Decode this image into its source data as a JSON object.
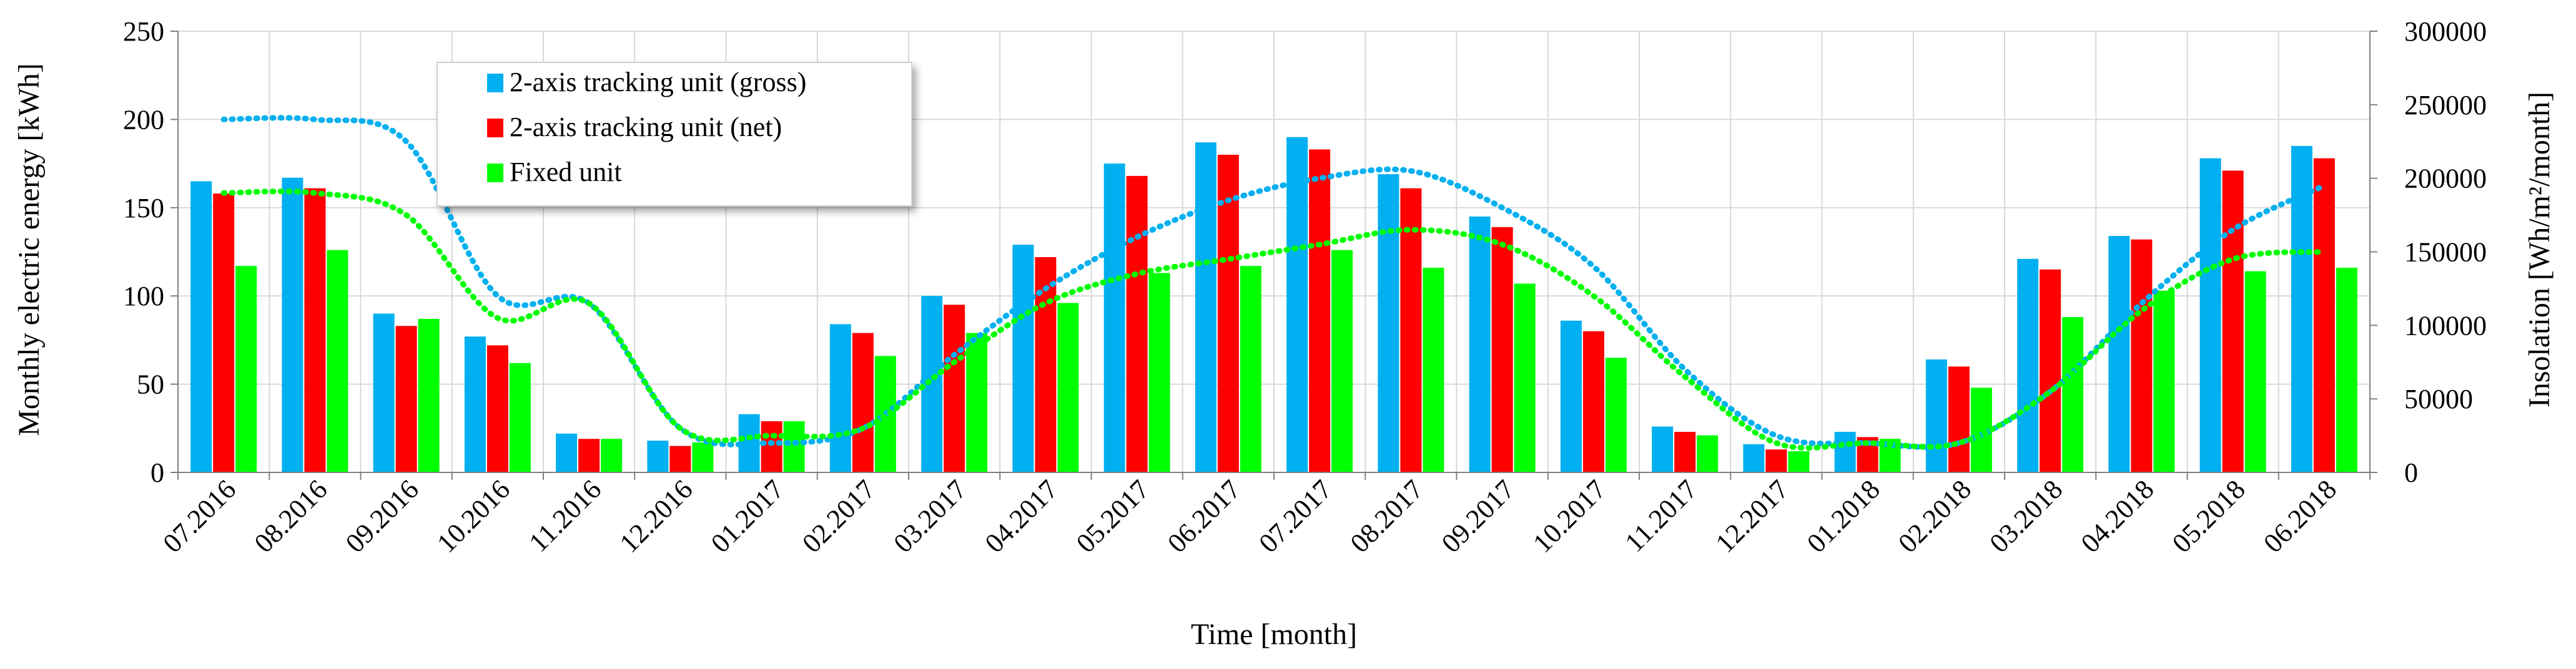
{
  "chart_data": {
    "type": "bar",
    "categories": [
      "07.2016",
      "08.2016",
      "09.2016",
      "10.2016",
      "11.2016",
      "12.2016",
      "01.2017",
      "02.2017",
      "03.2017",
      "04.2017",
      "05.2017",
      "06.2017",
      "07.2017",
      "08.2017",
      "09.2017",
      "10.2017",
      "11.2017",
      "12.2017",
      "01.2018",
      "02.2018",
      "03.2018",
      "04.2018",
      "05.2018",
      "06.2018"
    ],
    "xlabel": "Time [month]",
    "ylabel": "Monthly electric energy [kWh]",
    "y2label": "Insolation [Wh/m²/month]",
    "ylim": [
      0,
      250
    ],
    "y2lim": [
      0,
      300000
    ],
    "yticks": [
      "0",
      "50",
      "100",
      "150",
      "200",
      "250"
    ],
    "y2ticks": [
      "0",
      "50000",
      "100000",
      "150000",
      "200000",
      "250000",
      "300000"
    ],
    "grid": true,
    "legend_position": "top-left",
    "series": [
      {
        "name": "2-axis tracking unit (gross)",
        "kind": "bar",
        "color": "#00B0F0",
        "values": [
          165,
          167,
          90,
          77,
          22,
          18,
          33,
          84,
          100,
          129,
          175,
          187,
          190,
          169,
          145,
          86,
          26,
          16,
          23,
          64,
          121,
          134,
          178,
          185
        ]
      },
      {
        "name": "2-axis tracking unit (net)",
        "kind": "bar",
        "color": "#FF0000",
        "values": [
          158,
          161,
          83,
          72,
          19,
          15,
          29,
          79,
          95,
          122,
          168,
          180,
          183,
          161,
          139,
          80,
          23,
          13,
          20,
          60,
          115,
          132,
          171,
          178
        ]
      },
      {
        "name": "Fixed unit",
        "kind": "bar",
        "color": "#00FF00",
        "values": [
          117,
          126,
          87,
          62,
          19,
          17,
          29,
          66,
          79,
          96,
          113,
          117,
          126,
          116,
          107,
          65,
          21,
          12,
          19,
          48,
          88,
          103,
          114,
          116
        ]
      }
    ],
    "insolation_lines": [
      {
        "color": "#00B0F0",
        "axis": "right",
        "values": [
          240000,
          240000,
          225000,
          120000,
          115000,
          30000,
          20000,
          30000,
          80000,
          125000,
          160000,
          185000,
          200000,
          205000,
          180000,
          140000,
          70000,
          25000,
          20000,
          20000,
          55000,
          115000,
          165000,
          195000
        ]
      },
      {
        "color": "#00FF00",
        "axis": "right",
        "values": [
          190000,
          190000,
          175000,
          105000,
          115000,
          30000,
          25000,
          30000,
          75000,
          115000,
          135000,
          145000,
          155000,
          165000,
          155000,
          120000,
          65000,
          20000,
          20000,
          20000,
          55000,
          110000,
          145000,
          150000
        ]
      }
    ]
  }
}
